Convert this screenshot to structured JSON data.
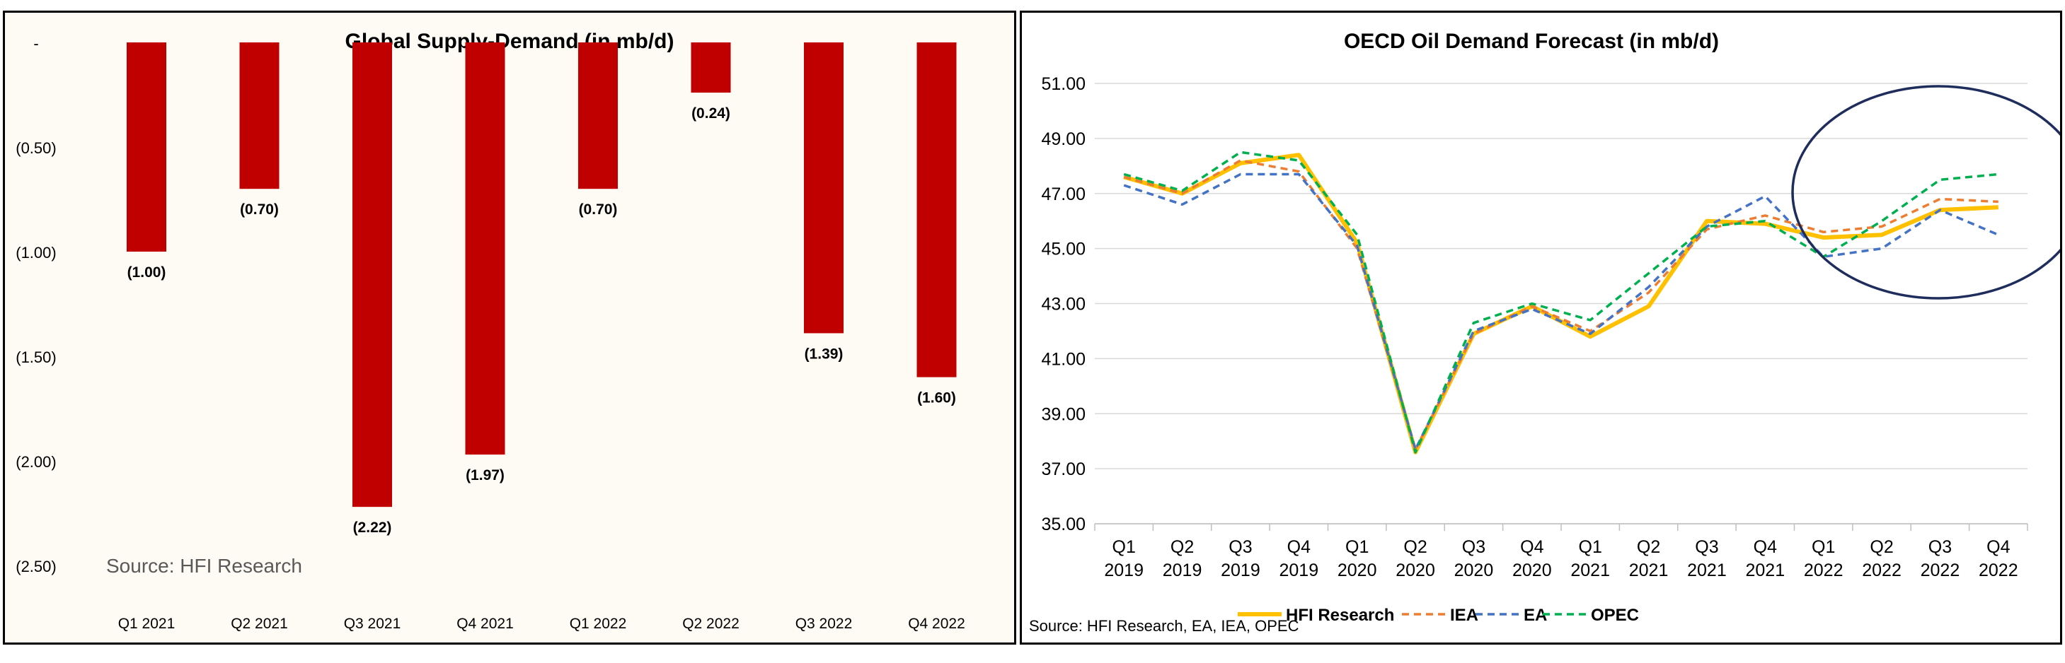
{
  "left_chart": {
    "source": "Source: HFI Research",
    "zero_tick": "-"
  },
  "right_chart": {
    "source": "Source: HFI Research, EA, IEA, OPEC"
  },
  "colors": {
    "bar": "#c00000",
    "hfi": "#ffc000",
    "iea": "#ed7d31",
    "ea": "#4472c4",
    "opec": "#00b050",
    "circle": "#1f2d5c",
    "grid": "#d9d9d9"
  },
  "chart_data": [
    {
      "type": "bar",
      "title": "Global Supply-Demand (in mb/d)",
      "categories": [
        "Q1 2021",
        "Q2 2021",
        "Q3 2021",
        "Q4 2021",
        "Q1 2022",
        "Q2 2022",
        "Q3 2022",
        "Q4 2022"
      ],
      "values": [
        -1.0,
        -0.7,
        -2.22,
        -1.97,
        -0.7,
        -0.24,
        -1.39,
        -1.6
      ],
      "data_labels": [
        "(1.00)",
        "(0.70)",
        "(2.22)",
        "(1.97)",
        "(0.70)",
        "(0.24)",
        "(1.39)",
        "(1.60)"
      ],
      "ylim": [
        -2.5,
        0
      ],
      "yticks": [
        0,
        -0.5,
        -1.0,
        -1.5,
        -2.0,
        -2.5
      ],
      "ytick_labels": [
        "-",
        "(0.50)",
        "(1.00)",
        "(1.50)",
        "(2.00)",
        "(2.50)"
      ],
      "grid": false,
      "legend": "none"
    },
    {
      "type": "line",
      "title": "OECD Oil Demand Forecast (in mb/d)",
      "categories": [
        [
          "Q1",
          "2019"
        ],
        [
          "Q2",
          "2019"
        ],
        [
          "Q3",
          "2019"
        ],
        [
          "Q4",
          "2019"
        ],
        [
          "Q1",
          "2020"
        ],
        [
          "Q2",
          "2020"
        ],
        [
          "Q3",
          "2020"
        ],
        [
          "Q4",
          "2020"
        ],
        [
          "Q1",
          "2021"
        ],
        [
          "Q2",
          "2021"
        ],
        [
          "Q3",
          "2021"
        ],
        [
          "Q4",
          "2021"
        ],
        [
          "Q1",
          "2022"
        ],
        [
          "Q2",
          "2022"
        ],
        [
          "Q3",
          "2022"
        ],
        [
          "Q4",
          "2022"
        ]
      ],
      "ylim": [
        35,
        51
      ],
      "yticks": [
        35,
        37,
        39,
        41,
        43,
        45,
        47,
        49,
        51
      ],
      "ytick_labels": [
        "35.00",
        "37.00",
        "39.00",
        "41.00",
        "43.00",
        "45.00",
        "47.00",
        "49.00",
        "51.00"
      ],
      "grid": true,
      "legend": "bottom",
      "series": [
        {
          "name": "HFI Research",
          "style": "solid",
          "values": [
            47.6,
            47.0,
            48.1,
            48.4,
            45.2,
            37.6,
            41.9,
            42.9,
            41.8,
            42.9,
            46.0,
            45.9,
            45.4,
            45.5,
            46.4,
            46.5
          ]
        },
        {
          "name": "IEA",
          "style": "dashed",
          "values": [
            47.6,
            47.0,
            48.2,
            47.8,
            45.0,
            37.7,
            41.9,
            42.9,
            42.0,
            43.4,
            45.7,
            46.2,
            45.6,
            45.8,
            46.8,
            46.7
          ]
        },
        {
          "name": "EA",
          "style": "dashed",
          "values": [
            47.3,
            46.6,
            47.7,
            47.7,
            45.1,
            37.7,
            42.0,
            42.8,
            41.9,
            43.6,
            45.8,
            46.9,
            44.7,
            45.0,
            46.4,
            45.5
          ]
        },
        {
          "name": "OPEC",
          "style": "dashed",
          "values": [
            47.7,
            47.1,
            48.5,
            48.2,
            45.5,
            37.6,
            42.3,
            43.0,
            42.4,
            44.1,
            45.8,
            46.0,
            44.7,
            46.0,
            47.5,
            47.7
          ]
        }
      ],
      "annotations": [
        "circle around Q4 2021 – Q4 2022"
      ]
    }
  ]
}
